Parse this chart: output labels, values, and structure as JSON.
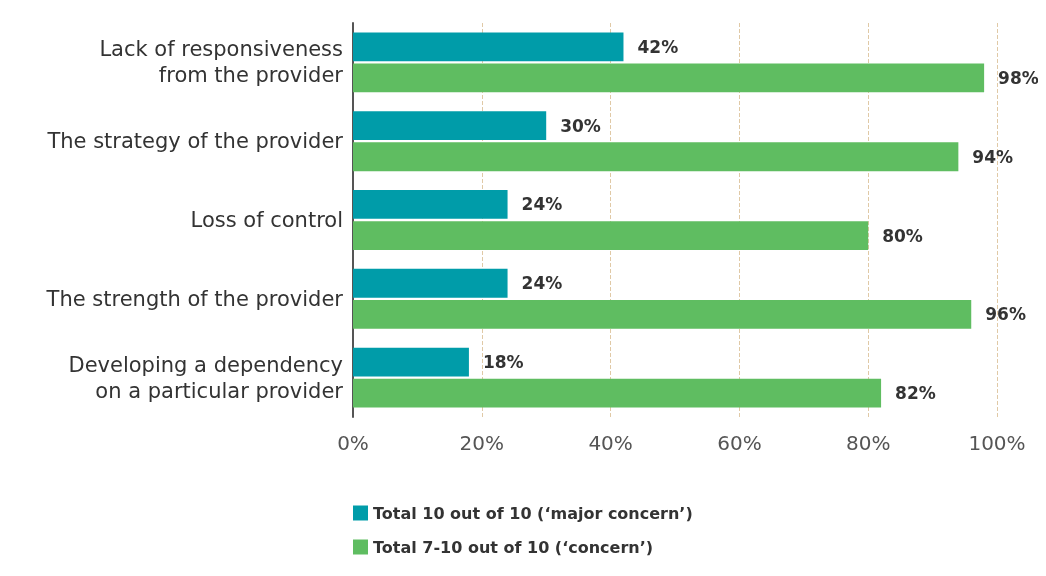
{
  "chart_data": {
    "type": "bar",
    "orientation": "horizontal",
    "categories": [
      "Lack of responsiveness\nfrom the provider",
      "The strategy of the provider",
      "Loss of control",
      "The strength of the provider",
      "Developing a dependency\non a particular provider"
    ],
    "series": [
      {
        "name": "Total 10 out of 10 (‘major concern’)",
        "color": "#009ca9",
        "values": [
          42,
          30,
          24,
          24,
          18
        ],
        "value_labels": [
          "42%",
          "30%",
          "24%",
          "24%",
          "18%"
        ]
      },
      {
        "name": "Total 7-10 out of 10 (‘concern’)",
        "color": "#5fbd61",
        "values": [
          98,
          94,
          80,
          96,
          82
        ],
        "value_labels": [
          "98%",
          "94%",
          "80%",
          "96%",
          "82%"
        ]
      }
    ],
    "xlim": [
      0,
      100
    ],
    "xticks": [
      {
        "value": 0,
        "label": "0%"
      },
      {
        "value": 20,
        "label": "20%"
      },
      {
        "value": 40,
        "label": "40%"
      },
      {
        "value": 60,
        "label": "60%"
      },
      {
        "value": 80,
        "label": "80%"
      },
      {
        "value": 100,
        "label": "100%"
      }
    ],
    "grid": "x",
    "legend": "bottom"
  }
}
